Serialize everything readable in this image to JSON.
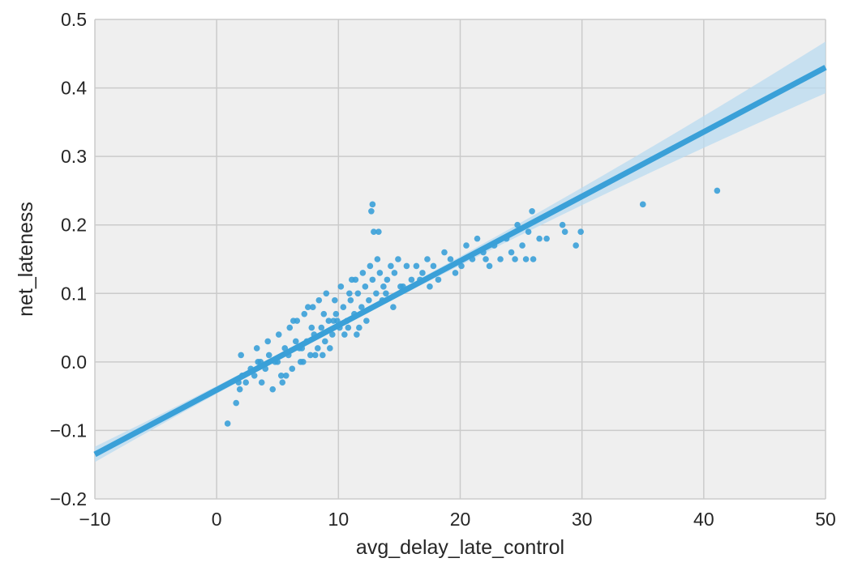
{
  "chart_data": {
    "type": "scatter",
    "title": "",
    "xlabel": "avg_delay_late_control",
    "ylabel": "net_lateness",
    "xlim": [
      -10,
      50
    ],
    "ylim": [
      -0.2,
      0.5
    ],
    "x_ticks": [
      -10,
      0,
      10,
      20,
      30,
      40,
      50
    ],
    "x_tick_labels": [
      "−10",
      "0",
      "10",
      "20",
      "30",
      "40",
      "50"
    ],
    "y_ticks": [
      -0.2,
      -0.1,
      0.0,
      0.1,
      0.2,
      0.3,
      0.4,
      0.5
    ],
    "y_tick_labels": [
      "−0.2",
      "−0.1",
      "0.0",
      "0.1",
      "0.2",
      "0.3",
      "0.4",
      "0.5"
    ],
    "grid": true,
    "legend": "none",
    "colors": {
      "background": "#efefef",
      "grid": "#cbcbcb",
      "series": "#3aa0d8",
      "band": "#b9dbf0"
    },
    "series": [
      {
        "kind": "points",
        "x": [
          0.9,
          1.6,
          1.9,
          2.1,
          2.4,
          2.0,
          2.8,
          3.1,
          3.4,
          3.7,
          3.3,
          4.0,
          4.3,
          4.6,
          4.2,
          5.0,
          5.3,
          5.6,
          5.1,
          5.9,
          6.2,
          6.5,
          6.0,
          6.8,
          7.1,
          6.6,
          7.4,
          7.7,
          7.2,
          8.0,
          8.3,
          7.9,
          8.6,
          8.9,
          8.4,
          9.2,
          9.5,
          9.0,
          9.8,
          10.1,
          9.7,
          10.4,
          10.7,
          10.2,
          11.0,
          11.3,
          10.9,
          11.6,
          11.9,
          11.4,
          12.2,
          12.5,
          12.0,
          12.8,
          13.1,
          12.6,
          13.4,
          13.7,
          13.2,
          14.0,
          14.3,
          13.9,
          14.6,
          14.9,
          15.3,
          15.6,
          16.0,
          16.4,
          16.9,
          17.3,
          17.8,
          18.2,
          18.7,
          19.2,
          19.6,
          20.1,
          20.5,
          21.0,
          21.4,
          21.9,
          22.4,
          22.8,
          23.3,
          23.8,
          24.2,
          24.7,
          25.1,
          25.6,
          26.0,
          26.5,
          25.9,
          28.4,
          28.6,
          29.5,
          29.9,
          35.0,
          41.1,
          12.8,
          12.7,
          12.9,
          13.3,
          1.8,
          4.8,
          5.4,
          6.3,
          7.0,
          7.5,
          8.1,
          8.8,
          9.3,
          9.9,
          10.5,
          11.1,
          11.7,
          12.3,
          3.6,
          5.7,
          6.9,
          7.8,
          8.7,
          9.6,
          10.8,
          11.5,
          13.6,
          14.5,
          15.1,
          16.7,
          17.5,
          22.1,
          24.5,
          25.4,
          27.1
        ],
        "y": [
          -0.09,
          -0.06,
          -0.04,
          -0.02,
          -0.03,
          0.01,
          -0.01,
          -0.02,
          0.0,
          -0.03,
          0.02,
          -0.01,
          0.01,
          -0.04,
          0.03,
          0.0,
          -0.02,
          0.02,
          0.04,
          0.01,
          -0.01,
          0.03,
          0.05,
          0.02,
          0.0,
          0.06,
          0.03,
          0.01,
          0.07,
          0.04,
          0.02,
          0.08,
          0.05,
          0.03,
          0.09,
          0.06,
          0.04,
          0.1,
          0.07,
          0.05,
          0.09,
          0.08,
          0.06,
          0.11,
          0.09,
          0.07,
          0.1,
          0.1,
          0.08,
          0.12,
          0.11,
          0.09,
          0.13,
          0.12,
          0.1,
          0.14,
          0.13,
          0.11,
          0.15,
          0.12,
          0.14,
          0.1,
          0.13,
          0.15,
          0.11,
          0.14,
          0.12,
          0.14,
          0.13,
          0.15,
          0.14,
          0.12,
          0.16,
          0.15,
          0.13,
          0.14,
          0.17,
          0.15,
          0.18,
          0.16,
          0.14,
          0.17,
          0.15,
          0.18,
          0.16,
          0.2,
          0.17,
          0.19,
          0.15,
          0.18,
          0.22,
          0.2,
          0.19,
          0.17,
          0.19,
          0.23,
          0.25,
          0.23,
          0.22,
          0.19,
          0.19,
          -0.03,
          0.0,
          -0.03,
          0.06,
          0.02,
          0.08,
          0.01,
          0.07,
          0.02,
          0.06,
          0.04,
          0.12,
          0.05,
          0.06,
          0.0,
          -0.02,
          0.0,
          0.05,
          0.01,
          0.06,
          0.05,
          0.04,
          0.09,
          0.08,
          0.11,
          0.12,
          0.11,
          0.15,
          0.15,
          0.15,
          0.18
        ]
      },
      {
        "kind": "regression",
        "x": [
          -10,
          50
        ],
        "y": [
          -0.135,
          0.43
        ]
      }
    ]
  }
}
